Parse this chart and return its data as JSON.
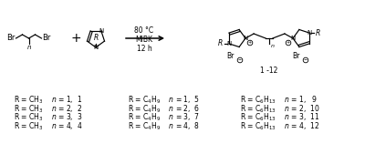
{
  "background_color": "#ffffff",
  "reaction_arrow_text_top": "80 °C",
  "reaction_arrow_text_mid": "MIBK",
  "reaction_arrow_text_bot": "12 h",
  "product_label": "1 -12",
  "table_col1_lines": [
    [
      "R = CH",
      "3",
      "   n = 1,  1"
    ],
    [
      "R = CH",
      "3",
      "   n = 2,  2"
    ],
    [
      "R = CH",
      "3",
      "   n = 3,  3"
    ],
    [
      "R = CH",
      "3",
      "   n = 4,  4"
    ]
  ],
  "table_col2_lines": [
    [
      "R = C",
      "4",
      "H",
      "9",
      "   n = 1,  5"
    ],
    [
      "R = C",
      "4",
      "H",
      "9",
      "   n = 2,  6"
    ],
    [
      "R = C",
      "4",
      "H",
      "9",
      "   n = 3,  7"
    ],
    [
      "R = C",
      "4",
      "H",
      "9",
      "   n = 4,  8"
    ]
  ],
  "table_col3_lines": [
    [
      "R = C",
      "6",
      "H",
      "13",
      "   n = 1,   9"
    ],
    [
      "R = C",
      "6",
      "H",
      "13",
      "   n = 2,  10"
    ],
    [
      "R = C",
      "6",
      "H",
      "13",
      "   n = 3,  11"
    ],
    [
      "R = C",
      "6",
      "H",
      "13",
      "   n = 4,  12"
    ]
  ],
  "font_size_table": 5.5,
  "font_size_reaction": 6.0,
  "text_color": "#000000"
}
